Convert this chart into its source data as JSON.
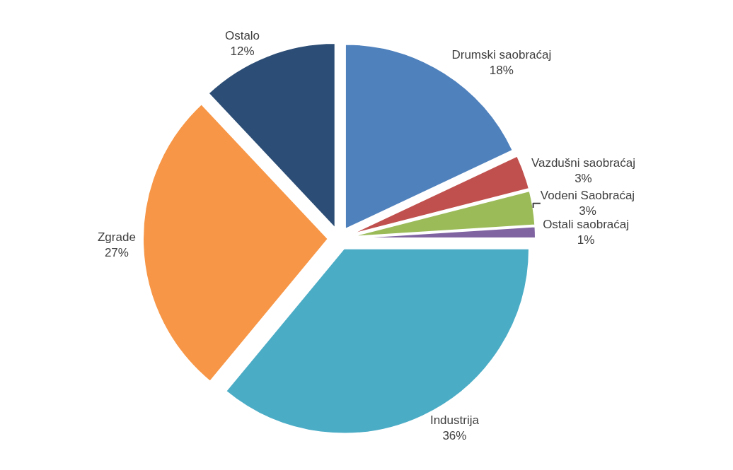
{
  "chart_data": {
    "type": "pie",
    "categories": [
      "Drumski saobraćaj",
      "Vazdušni saobraćaj",
      "Vodeni Saobraćaj",
      "Ostali saobraćaj",
      "Industrija",
      "Zgrade",
      "Ostalo"
    ],
    "values": [
      18,
      3,
      3,
      1,
      36,
      27,
      12
    ],
    "value_labels": [
      "18%",
      "3%",
      "3%",
      "1%",
      "36%",
      "27%",
      "12%"
    ],
    "colors": [
      "#4f81bd",
      "#c0504d",
      "#9bbb59",
      "#8064a2",
      "#4bacc6",
      "#f79646",
      "#2c4d75"
    ],
    "legend": false
  }
}
